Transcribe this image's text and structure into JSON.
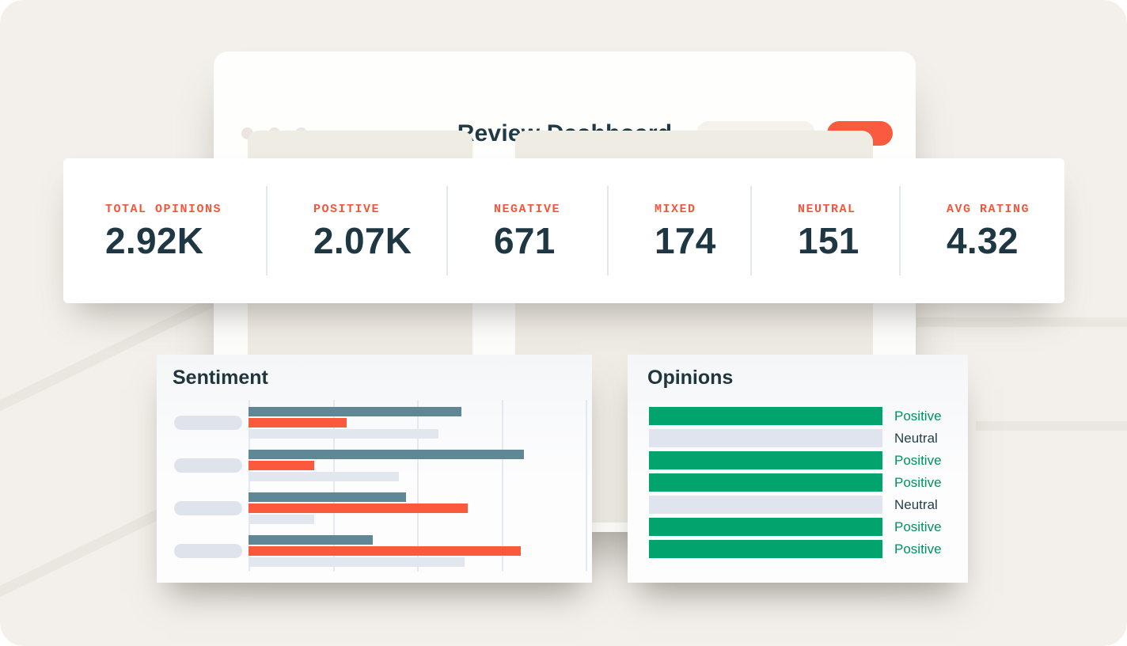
{
  "window": {
    "title": "Review Dashboard"
  },
  "stats": {
    "items": [
      {
        "label": "TOTAL OPINIONS",
        "value": "2.92K"
      },
      {
        "label": "POSITIVE",
        "value": "2.07K"
      },
      {
        "label": "NEGATIVE",
        "value": "671"
      },
      {
        "label": "MIXED",
        "value": "174"
      },
      {
        "label": "NEUTRAL",
        "value": "151"
      },
      {
        "label": "AVG RATING",
        "value": "4.32"
      }
    ]
  },
  "sentiment_card": {
    "title": "Sentiment"
  },
  "opinions_card": {
    "title": "Opinions"
  },
  "colors": {
    "background": "#F3F0EB",
    "accent_orange": "#FA5A3D",
    "stat_label_orange": "#F2573C",
    "navy_text": "#1E3743",
    "slate_bar": "#5F8795",
    "orange_bar": "#FA593C",
    "muted_bar": "#E2E6EF",
    "green_bar": "#00A46C",
    "neutral_bar": "#DFE4EF",
    "positive_text": "#00915E",
    "neutral_text": "#25404B"
  },
  "chart_data": [
    {
      "id": "sentiment",
      "type": "bar",
      "orientation": "horizontal",
      "title": "Sentiment",
      "categories": [
        "",
        "",
        "",
        ""
      ],
      "series": [
        {
          "name": "primary",
          "color": "#5F8795",
          "values": [
            65,
            84,
            48,
            38
          ]
        },
        {
          "name": "negative",
          "color": "#FA593C",
          "values": [
            30,
            20,
            67,
            83
          ]
        },
        {
          "name": "muted",
          "color": "#E2E6EF",
          "values": [
            58,
            46,
            20,
            66
          ]
        }
      ],
      "x_max": 100,
      "gridlines": 5,
      "legend": "none"
    },
    {
      "id": "opinions",
      "type": "bar",
      "orientation": "horizontal",
      "title": "Opinions",
      "rows": [
        {
          "label": "Positive",
          "value": 100
        },
        {
          "label": "Neutral",
          "value": 100
        },
        {
          "label": "Positive",
          "value": 100
        },
        {
          "label": "Positive",
          "value": 100
        },
        {
          "label": "Neutral",
          "value": 100
        },
        {
          "label": "Positive",
          "value": 100
        },
        {
          "label": "Positive",
          "value": 100
        }
      ],
      "x_max": 100,
      "legend": "none"
    }
  ]
}
